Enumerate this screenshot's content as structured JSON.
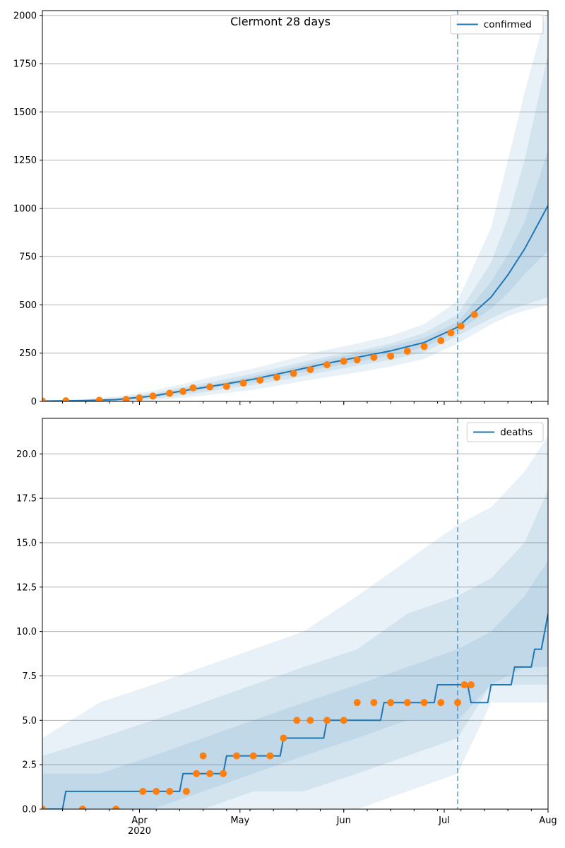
{
  "title": "Clermont 28 days",
  "colors": {
    "line": "#1f77b4",
    "observed": "#ff7f0e",
    "band": "#1f77b4",
    "grid": "#b0b0b0"
  },
  "chart_data": [
    {
      "type": "line",
      "legend": [
        "confirmed"
      ],
      "legend_position": "top-right",
      "grid": true,
      "xlim": [
        "2020-03-03",
        "2020-08-01"
      ],
      "ylim": [
        0,
        2025
      ],
      "yticks": [
        "0",
        "250",
        "500",
        "750",
        "1000",
        "1250",
        "1500",
        "1750",
        "2000"
      ],
      "forecast_start": "2020-07-05",
      "series": [
        {
          "name": "confirmed",
          "kind": "model",
          "x": [
            "2020-03-03",
            "2020-03-15",
            "2020-03-25",
            "2020-04-05",
            "2020-04-15",
            "2020-04-25",
            "2020-05-05",
            "2020-05-15",
            "2020-05-25",
            "2020-06-05",
            "2020-06-15",
            "2020-06-25",
            "2020-07-05",
            "2020-07-15",
            "2020-07-20",
            "2020-07-25",
            "2020-08-01"
          ],
          "y": [
            2,
            4,
            9,
            28,
            58,
            85,
            115,
            152,
            190,
            228,
            262,
            305,
            385,
            540,
            655,
            790,
            1015
          ]
        },
        {
          "name": "observed",
          "kind": "observed",
          "x": [
            "2020-03-03",
            "2020-03-10",
            "2020-03-20",
            "2020-03-28",
            "2020-04-01",
            "2020-04-05",
            "2020-04-10",
            "2020-04-14",
            "2020-04-17",
            "2020-04-22",
            "2020-04-27",
            "2020-05-02",
            "2020-05-07",
            "2020-05-12",
            "2020-05-17",
            "2020-05-22",
            "2020-05-27",
            "2020-06-01",
            "2020-06-05",
            "2020-06-10",
            "2020-06-15",
            "2020-06-20",
            "2020-06-25",
            "2020-06-30",
            "2020-07-03",
            "2020-07-06",
            "2020-07-10"
          ],
          "y": [
            2,
            3,
            6,
            10,
            18,
            28,
            42,
            52,
            70,
            75,
            78,
            95,
            110,
            125,
            145,
            165,
            190,
            208,
            215,
            228,
            235,
            260,
            285,
            315,
            355,
            390,
            450
          ]
        }
      ],
      "bands": {
        "x": [
          "2020-03-03",
          "2020-03-15",
          "2020-03-25",
          "2020-04-05",
          "2020-04-15",
          "2020-04-25",
          "2020-05-05",
          "2020-05-15",
          "2020-05-25",
          "2020-06-05",
          "2020-06-15",
          "2020-06-25",
          "2020-07-05",
          "2020-07-15",
          "2020-07-20",
          "2020-07-25",
          "2020-08-01"
        ],
        "outer": {
          "low": [
            0,
            0,
            0,
            5,
            20,
            40,
            60,
            90,
            120,
            150,
            180,
            220,
            300,
            400,
            440,
            470,
            500
          ],
          "high": [
            5,
            12,
            25,
            55,
            95,
            135,
            170,
            215,
            260,
            300,
            340,
            400,
            520,
            900,
            1250,
            1600,
            2050
          ]
        },
        "middle": {
          "low": [
            0,
            1,
            2,
            12,
            35,
            60,
            85,
            115,
            150,
            185,
            215,
            255,
            340,
            430,
            470,
            500,
            540
          ],
          "high": [
            4,
            8,
            18,
            42,
            78,
            110,
            145,
            185,
            225,
            262,
            300,
            355,
            450,
            720,
            950,
            1250,
            1800
          ]
        },
        "inner": {
          "low": [
            1,
            2,
            5,
            20,
            48,
            75,
            100,
            135,
            170,
            205,
            240,
            280,
            365,
            480,
            560,
            660,
            780
          ],
          "high": [
            3,
            6,
            13,
            35,
            68,
            95,
            130,
            168,
            210,
            250,
            285,
            330,
            410,
            620,
            760,
            930,
            1300
          ]
        }
      }
    },
    {
      "type": "line",
      "legend": [
        "deaths"
      ],
      "legend_position": "top-right",
      "grid": true,
      "xlim": [
        "2020-03-03",
        "2020-08-01"
      ],
      "ylim": [
        0,
        22
      ],
      "yticks": [
        "0.0",
        "2.5",
        "5.0",
        "7.5",
        "10.0",
        "12.5",
        "15.0",
        "17.5",
        "20.0"
      ],
      "xticks": [
        "Apr\n2020",
        "May",
        "Jun",
        "Jul",
        "Aug"
      ],
      "forecast_start": "2020-07-05",
      "series": [
        {
          "name": "deaths",
          "kind": "model",
          "x": [
            "2020-03-03",
            "2020-03-09",
            "2020-03-10",
            "2020-04-01",
            "2020-04-13",
            "2020-04-14",
            "2020-04-26",
            "2020-04-27",
            "2020-05-13",
            "2020-05-14",
            "2020-05-26",
            "2020-05-27",
            "2020-06-12",
            "2020-06-13",
            "2020-06-28",
            "2020-06-29",
            "2020-07-08",
            "2020-07-09",
            "2020-07-14",
            "2020-07-15",
            "2020-07-21",
            "2020-07-22",
            "2020-07-27",
            "2020-07-28",
            "2020-07-30",
            "2020-07-31",
            "2020-08-01"
          ],
          "y": [
            0,
            0,
            1,
            1,
            1,
            2,
            2,
            3,
            3,
            4,
            4,
            5,
            5,
            6,
            6,
            7,
            7,
            6,
            6,
            7,
            7,
            8,
            8,
            9,
            9,
            10,
            11
          ]
        },
        {
          "name": "observed",
          "kind": "observed",
          "x": [
            "2020-03-03",
            "2020-03-15",
            "2020-03-25",
            "2020-04-02",
            "2020-04-06",
            "2020-04-10",
            "2020-04-15",
            "2020-04-18",
            "2020-04-20",
            "2020-04-22",
            "2020-04-26",
            "2020-04-30",
            "2020-05-05",
            "2020-05-10",
            "2020-05-14",
            "2020-05-18",
            "2020-05-22",
            "2020-05-27",
            "2020-06-01",
            "2020-06-05",
            "2020-06-10",
            "2020-06-15",
            "2020-06-20",
            "2020-06-25",
            "2020-06-30",
            "2020-07-05",
            "2020-07-07",
            "2020-07-09"
          ],
          "y": [
            0,
            0,
            0,
            1,
            1,
            1,
            1,
            2,
            3,
            2,
            2,
            3,
            3,
            3,
            4,
            5,
            5,
            5,
            5,
            6,
            6,
            6,
            6,
            6,
            6,
            6,
            7,
            7
          ]
        }
      ],
      "bands": {
        "x": [
          "2020-03-03",
          "2020-03-20",
          "2020-04-05",
          "2020-04-20",
          "2020-05-05",
          "2020-05-20",
          "2020-06-05",
          "2020-06-20",
          "2020-07-05",
          "2020-07-15",
          "2020-07-25",
          "2020-08-01"
        ],
        "outer": {
          "low": [
            0,
            0,
            0,
            0,
            0,
            0,
            0,
            1,
            2,
            6,
            6,
            6
          ],
          "high": [
            4,
            6,
            7,
            8,
            9,
            10,
            12,
            14,
            16,
            17,
            19,
            21
          ]
        },
        "middle": {
          "low": [
            0,
            0,
            0,
            0,
            1,
            1,
            2,
            3,
            4,
            7,
            7,
            7
          ],
          "high": [
            3,
            4,
            5,
            6,
            7,
            8,
            9,
            11,
            12,
            13,
            15,
            18
          ]
        },
        "inner": {
          "low": [
            0,
            0,
            0,
            1,
            2,
            3,
            4,
            5,
            5,
            7,
            8,
            8
          ],
          "high": [
            2,
            2,
            3,
            4,
            5,
            6,
            7,
            8,
            9,
            10,
            12,
            14
          ]
        }
      }
    }
  ]
}
